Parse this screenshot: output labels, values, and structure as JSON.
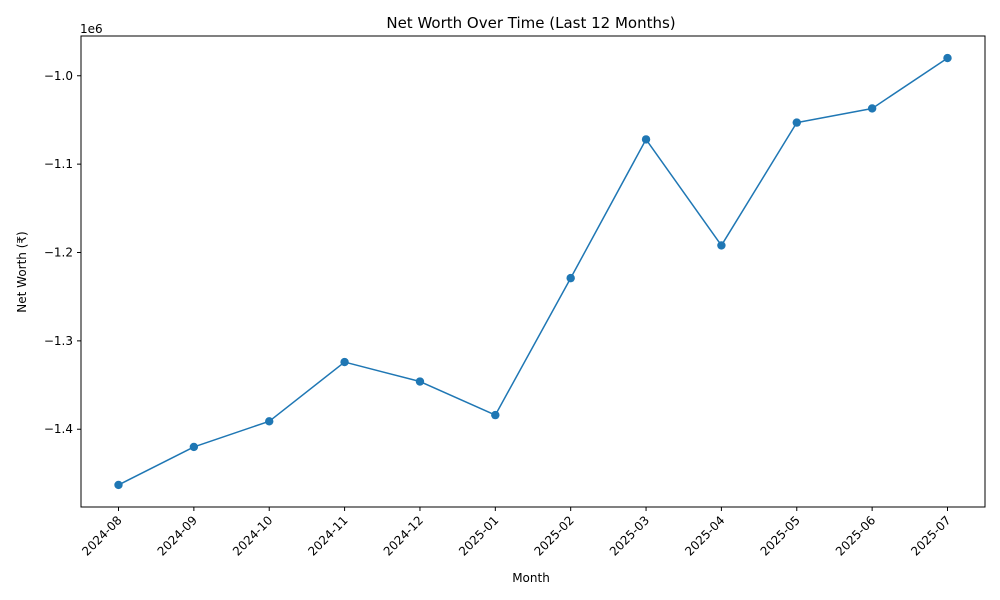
{
  "chart_data": {
    "type": "line",
    "title": "Net Worth Over Time (Last 12 Months)",
    "xlabel": "Month",
    "ylabel": "Net Worth (₹)",
    "y_offset_label": "1e6",
    "x_tick_rotation_deg": 45,
    "categories": [
      "2024-08",
      "2024-09",
      "2024-10",
      "2024-11",
      "2024-12",
      "2025-01",
      "2025-02",
      "2025-03",
      "2025-04",
      "2025-05",
      "2025-06",
      "2025-07"
    ],
    "series": [
      {
        "color": "#1f77b4",
        "marker": "circle",
        "values": [
          -1463000,
          -1420000,
          -1391000,
          -1324000,
          -1346000,
          -1384000,
          -1229000,
          -1072000,
          -1192000,
          -1053000,
          -1037000,
          -980000
        ]
      }
    ],
    "yticks": [
      -1.4,
      -1.3,
      -1.2,
      -1.1,
      -1.0
    ],
    "ytick_labels": [
      "−1.4",
      "−1.3",
      "−1.2",
      "−1.1",
      "−1.0"
    ],
    "ylim": [
      -1488000,
      -955000
    ],
    "grid": false,
    "legend": "none"
  }
}
